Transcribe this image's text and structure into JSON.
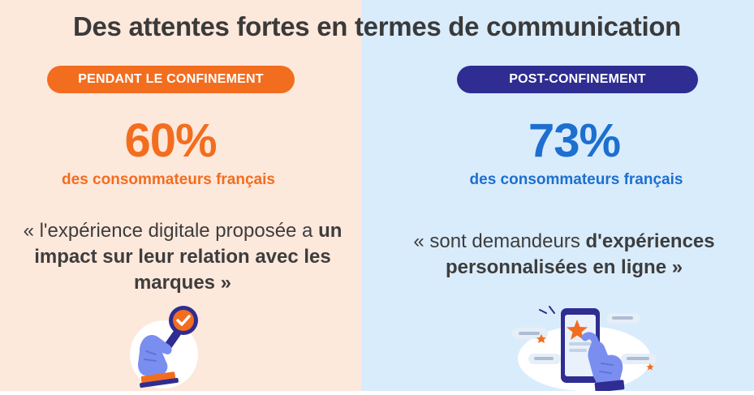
{
  "title": "Des attentes fortes en termes de communication",
  "left": {
    "badge": "PENDANT LE CONFINEMENT",
    "stat": "60%",
    "subtitle": "des consommateurs français",
    "quote_part1": "« l'expérience digitale proposée a ",
    "quote_bold": "un impact sur leur relation avec les marques",
    "quote_part2": " »"
  },
  "right": {
    "badge": "POST-CONFINEMENT",
    "stat": "73%",
    "subtitle": "des consommateurs français",
    "quote_part1": "« sont demandeurs ",
    "quote_bold": "d'expériences personnalisées en ligne",
    "quote_part2": " »"
  },
  "colors": {
    "left_bg": "#fde8dc",
    "right_bg": "#d9ecfc",
    "orange": "#f36d1f",
    "blue": "#1d6fd0",
    "navy": "#2f2c92",
    "title": "#3a3a3a"
  },
  "icons": [
    "magnifier-check-icon",
    "phone-star-icon"
  ]
}
